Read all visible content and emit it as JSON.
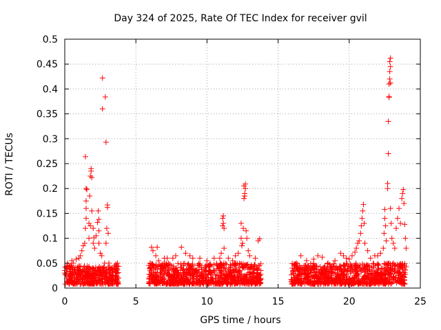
{
  "chart_data": {
    "type": "scatter",
    "title": "Day 324 of 2025, Rate Of TEC Index for receiver gvil",
    "xlabel": "GPS time / hours",
    "ylabel": "ROTI / TECUs",
    "xlim": [
      0,
      25
    ],
    "ylim": [
      0,
      0.5
    ],
    "x_ticks": [
      0,
      5,
      10,
      15,
      20,
      25
    ],
    "x_tick_labels": [
      "0",
      "5",
      "10",
      "15",
      "20",
      "25"
    ],
    "y_ticks": [
      0,
      0.05,
      0.1,
      0.15,
      0.2,
      0.25,
      0.3,
      0.35,
      0.4,
      0.45,
      0.5
    ],
    "y_tick_labels": [
      "0",
      "0.05",
      "0.1",
      "0.15",
      "0.2",
      "0.25",
      "0.3",
      "0.35",
      "0.4",
      "0.45",
      "0.5"
    ],
    "grid": true,
    "marker": "+",
    "color": "#ff0000",
    "data_segments": [
      {
        "name": "segment-1",
        "x_range": [
          0.0,
          3.8
        ],
        "baseline_range": [
          0.008,
          0.045
        ]
      },
      {
        "name": "segment-2",
        "x_range": [
          5.9,
          13.8
        ],
        "baseline_range": [
          0.008,
          0.05
        ]
      },
      {
        "name": "segment-3",
        "x_range": [
          15.9,
          24.0
        ],
        "baseline_range": [
          0.008,
          0.05
        ]
      }
    ],
    "series": [
      {
        "name": "ROTI",
        "points": [
          {
            "x": 0.0,
            "y": 0.03
          },
          {
            "x": 0.1,
            "y": 0.04
          },
          {
            "x": 0.2,
            "y": 0.05
          },
          {
            "x": 0.3,
            "y": 0.045
          },
          {
            "x": 0.5,
            "y": 0.055
          },
          {
            "x": 0.6,
            "y": 0.05
          },
          {
            "x": 0.8,
            "y": 0.058
          },
          {
            "x": 1.0,
            "y": 0.06
          },
          {
            "x": 1.1,
            "y": 0.065
          },
          {
            "x": 1.2,
            "y": 0.075
          },
          {
            "x": 1.3,
            "y": 0.085
          },
          {
            "x": 1.4,
            "y": 0.09
          },
          {
            "x": 1.45,
            "y": 0.12
          },
          {
            "x": 1.5,
            "y": 0.14
          },
          {
            "x": 1.5,
            "y": 0.16
          },
          {
            "x": 1.5,
            "y": 0.175
          },
          {
            "x": 1.5,
            "y": 0.2
          },
          {
            "x": 1.55,
            "y": 0.198
          },
          {
            "x": 1.45,
            "y": 0.264
          },
          {
            "x": 1.7,
            "y": 0.1
          },
          {
            "x": 1.7,
            "y": 0.13
          },
          {
            "x": 1.75,
            "y": 0.185
          },
          {
            "x": 1.8,
            "y": 0.225
          },
          {
            "x": 1.85,
            "y": 0.24
          },
          {
            "x": 1.85,
            "y": 0.235
          },
          {
            "x": 1.9,
            "y": 0.222
          },
          {
            "x": 1.9,
            "y": 0.155
          },
          {
            "x": 1.8,
            "y": 0.125
          },
          {
            "x": 2.0,
            "y": 0.12
          },
          {
            "x": 2.0,
            "y": 0.09
          },
          {
            "x": 2.05,
            "y": 0.101
          },
          {
            "x": 2.1,
            "y": 0.08
          },
          {
            "x": 2.2,
            "y": 0.105
          },
          {
            "x": 2.3,
            "y": 0.132
          },
          {
            "x": 2.35,
            "y": 0.155
          },
          {
            "x": 2.4,
            "y": 0.138
          },
          {
            "x": 2.4,
            "y": 0.115
          },
          {
            "x": 2.4,
            "y": 0.09
          },
          {
            "x": 2.5,
            "y": 0.07
          },
          {
            "x": 2.6,
            "y": 0.065
          },
          {
            "x": 2.65,
            "y": 0.36
          },
          {
            "x": 2.65,
            "y": 0.422
          },
          {
            "x": 2.8,
            "y": 0.05
          },
          {
            "x": 2.85,
            "y": 0.384
          },
          {
            "x": 2.9,
            "y": 0.293
          },
          {
            "x": 2.9,
            "y": 0.09
          },
          {
            "x": 2.95,
            "y": 0.12
          },
          {
            "x": 3.0,
            "y": 0.167
          },
          {
            "x": 3.0,
            "y": 0.162
          },
          {
            "x": 3.05,
            "y": 0.11
          },
          {
            "x": 3.1,
            "y": 0.05
          },
          {
            "x": 3.3,
            "y": 0.04
          },
          {
            "x": 3.5,
            "y": 0.045
          },
          {
            "x": 3.6,
            "y": 0.048
          },
          {
            "x": 3.7,
            "y": 0.05
          },
          {
            "x": 6.0,
            "y": 0.05
          },
          {
            "x": 6.1,
            "y": 0.082
          },
          {
            "x": 6.2,
            "y": 0.075
          },
          {
            "x": 6.4,
            "y": 0.065
          },
          {
            "x": 6.5,
            "y": 0.082
          },
          {
            "x": 6.6,
            "y": 0.055
          },
          {
            "x": 7.0,
            "y": 0.06
          },
          {
            "x": 7.2,
            "y": 0.06
          },
          {
            "x": 7.6,
            "y": 0.06
          },
          {
            "x": 7.8,
            "y": 0.065
          },
          {
            "x": 8.2,
            "y": 0.082
          },
          {
            "x": 8.5,
            "y": 0.07
          },
          {
            "x": 8.8,
            "y": 0.065
          },
          {
            "x": 9.0,
            "y": 0.06
          },
          {
            "x": 9.5,
            "y": 0.06
          },
          {
            "x": 10.0,
            "y": 0.055
          },
          {
            "x": 10.5,
            "y": 0.06
          },
          {
            "x": 10.9,
            "y": 0.06
          },
          {
            "x": 11.1,
            "y": 0.14
          },
          {
            "x": 11.1,
            "y": 0.125
          },
          {
            "x": 11.15,
            "y": 0.145
          },
          {
            "x": 11.15,
            "y": 0.13
          },
          {
            "x": 11.2,
            "y": 0.12
          },
          {
            "x": 11.2,
            "y": 0.08
          },
          {
            "x": 11.0,
            "y": 0.07
          },
          {
            "x": 11.5,
            "y": 0.06
          },
          {
            "x": 11.8,
            "y": 0.055
          },
          {
            "x": 12.0,
            "y": 0.065
          },
          {
            "x": 12.2,
            "y": 0.07
          },
          {
            "x": 12.3,
            "y": 0.05
          },
          {
            "x": 12.4,
            "y": 0.13
          },
          {
            "x": 12.4,
            "y": 0.1
          },
          {
            "x": 12.45,
            "y": 0.085
          },
          {
            "x": 12.5,
            "y": 0.09
          },
          {
            "x": 12.55,
            "y": 0.12
          },
          {
            "x": 12.6,
            "y": 0.18
          },
          {
            "x": 12.6,
            "y": 0.205
          },
          {
            "x": 12.65,
            "y": 0.19
          },
          {
            "x": 12.65,
            "y": 0.185
          },
          {
            "x": 12.7,
            "y": 0.2
          },
          {
            "x": 12.7,
            "y": 0.209
          },
          {
            "x": 12.75,
            "y": 0.115
          },
          {
            "x": 12.8,
            "y": 0.1
          },
          {
            "x": 12.9,
            "y": 0.075
          },
          {
            "x": 13.0,
            "y": 0.065
          },
          {
            "x": 13.4,
            "y": 0.06
          },
          {
            "x": 13.6,
            "y": 0.095
          },
          {
            "x": 13.7,
            "y": 0.099
          },
          {
            "x": 16.0,
            "y": 0.04
          },
          {
            "x": 16.5,
            "y": 0.045
          },
          {
            "x": 16.6,
            "y": 0.065
          },
          {
            "x": 17.0,
            "y": 0.055
          },
          {
            "x": 17.5,
            "y": 0.058
          },
          {
            "x": 17.8,
            "y": 0.065
          },
          {
            "x": 18.1,
            "y": 0.062
          },
          {
            "x": 18.5,
            "y": 0.05
          },
          {
            "x": 19.0,
            "y": 0.055
          },
          {
            "x": 19.4,
            "y": 0.07
          },
          {
            "x": 19.6,
            "y": 0.065
          },
          {
            "x": 19.8,
            "y": 0.06
          },
          {
            "x": 20.0,
            "y": 0.058
          },
          {
            "x": 20.2,
            "y": 0.065
          },
          {
            "x": 20.4,
            "y": 0.072
          },
          {
            "x": 20.5,
            "y": 0.08
          },
          {
            "x": 20.6,
            "y": 0.09
          },
          {
            "x": 20.7,
            "y": 0.095
          },
          {
            "x": 20.8,
            "y": 0.11
          },
          {
            "x": 20.85,
            "y": 0.125
          },
          {
            "x": 20.9,
            "y": 0.14
          },
          {
            "x": 20.95,
            "y": 0.155
          },
          {
            "x": 21.0,
            "y": 0.168
          },
          {
            "x": 21.05,
            "y": 0.13
          },
          {
            "x": 21.1,
            "y": 0.09
          },
          {
            "x": 21.3,
            "y": 0.075
          },
          {
            "x": 21.5,
            "y": 0.06
          },
          {
            "x": 21.8,
            "y": 0.065
          },
          {
            "x": 22.0,
            "y": 0.065
          },
          {
            "x": 22.2,
            "y": 0.07
          },
          {
            "x": 22.4,
            "y": 0.08
          },
          {
            "x": 22.45,
            "y": 0.11
          },
          {
            "x": 22.5,
            "y": 0.14
          },
          {
            "x": 22.5,
            "y": 0.158
          },
          {
            "x": 22.55,
            "y": 0.125
          },
          {
            "x": 22.6,
            "y": 0.095
          },
          {
            "x": 22.7,
            "y": 0.2
          },
          {
            "x": 22.7,
            "y": 0.21
          },
          {
            "x": 22.75,
            "y": 0.27
          },
          {
            "x": 22.75,
            "y": 0.335
          },
          {
            "x": 22.8,
            "y": 0.383
          },
          {
            "x": 22.8,
            "y": 0.385
          },
          {
            "x": 22.8,
            "y": 0.41
          },
          {
            "x": 22.85,
            "y": 0.42
          },
          {
            "x": 22.85,
            "y": 0.435
          },
          {
            "x": 22.85,
            "y": 0.455
          },
          {
            "x": 22.9,
            "y": 0.462
          },
          {
            "x": 22.9,
            "y": 0.445
          },
          {
            "x": 22.9,
            "y": 0.412
          },
          {
            "x": 22.9,
            "y": 0.16
          },
          {
            "x": 22.95,
            "y": 0.13
          },
          {
            "x": 23.0,
            "y": 0.1
          },
          {
            "x": 23.1,
            "y": 0.09
          },
          {
            "x": 23.2,
            "y": 0.08
          },
          {
            "x": 23.3,
            "y": 0.12
          },
          {
            "x": 23.4,
            "y": 0.14
          },
          {
            "x": 23.5,
            "y": 0.16
          },
          {
            "x": 23.6,
            "y": 0.13
          },
          {
            "x": 23.7,
            "y": 0.18
          },
          {
            "x": 23.75,
            "y": 0.19
          },
          {
            "x": 23.8,
            "y": 0.198
          },
          {
            "x": 23.85,
            "y": 0.17
          },
          {
            "x": 23.9,
            "y": 0.128
          },
          {
            "x": 23.95,
            "y": 0.1
          },
          {
            "x": 24.0,
            "y": 0.08
          }
        ]
      }
    ]
  }
}
